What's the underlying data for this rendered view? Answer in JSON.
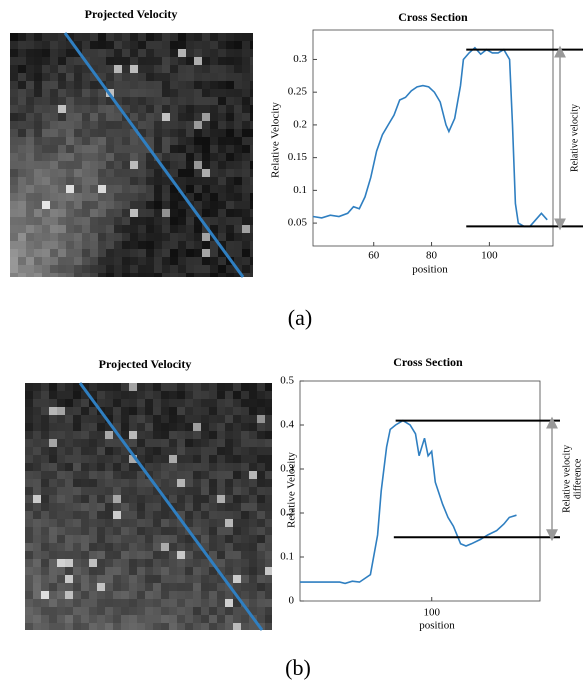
{
  "panels": [
    {
      "image_title": "Projected Velocity",
      "caption": "(a)"
    },
    {
      "image_title": "Projected Velocity",
      "caption": "(b)"
    }
  ],
  "chart_data": [
    {
      "type": "line",
      "title": "Cross Section",
      "x_label": "position",
      "y_label": "Relative Velocity",
      "annotation_lines": [
        "Relative velocity"
      ],
      "color": "#2f7fc1",
      "xlim": [
        39,
        122
      ],
      "xticks": [
        60,
        80,
        100
      ],
      "ylim": [
        0.015,
        0.345
      ],
      "yticks": [
        0.05,
        0.1,
        0.15,
        0.2,
        0.25,
        0.3
      ],
      "x": [
        39,
        42,
        45,
        48,
        51,
        53,
        55,
        57,
        59,
        61,
        63,
        65,
        67,
        69,
        71,
        73,
        75,
        77,
        79,
        81,
        83,
        85,
        86,
        88,
        90,
        91,
        93,
        95,
        97,
        99,
        101,
        103,
        105,
        107,
        108,
        109,
        110,
        112,
        114,
        116,
        118,
        120
      ],
      "values": [
        0.06,
        0.058,
        0.062,
        0.06,
        0.065,
        0.075,
        0.072,
        0.09,
        0.12,
        0.16,
        0.185,
        0.2,
        0.215,
        0.238,
        0.242,
        0.252,
        0.258,
        0.26,
        0.258,
        0.25,
        0.235,
        0.2,
        0.19,
        0.21,
        0.26,
        0.3,
        0.31,
        0.318,
        0.308,
        0.315,
        0.31,
        0.31,
        0.315,
        0.3,
        0.2,
        0.08,
        0.05,
        0.045,
        0.045,
        0.055,
        0.065,
        0.055
      ],
      "hlines": [
        {
          "value": 0.315,
          "xstart": 92
        },
        {
          "value": 0.045,
          "xstart": 92
        }
      ]
    },
    {
      "type": "line",
      "title": "Cross Section",
      "x_label": "position",
      "y_label": "Relative Velocity",
      "annotation_lines": [
        "Relative velocity",
        "difference"
      ],
      "color": "#2f7fc1",
      "xlim": [
        27,
        160
      ],
      "xticks": [
        100
      ],
      "ylim": [
        0,
        0.5
      ],
      "yticks": [
        0,
        0.1,
        0.2,
        0.3,
        0.4,
        0.5
      ],
      "x": [
        27,
        49,
        52,
        56,
        60,
        66,
        70,
        72,
        75,
        77,
        80,
        84,
        88,
        91,
        93,
        96,
        98,
        100,
        102,
        106,
        109,
        112,
        116,
        119,
        122,
        127,
        131,
        136,
        140,
        143,
        147
      ],
      "values": [
        0.043,
        0.043,
        0.04,
        0.045,
        0.043,
        0.06,
        0.15,
        0.25,
        0.35,
        0.39,
        0.4,
        0.41,
        0.4,
        0.38,
        0.33,
        0.37,
        0.33,
        0.34,
        0.27,
        0.22,
        0.19,
        0.17,
        0.13,
        0.125,
        0.13,
        0.14,
        0.15,
        0.16,
        0.175,
        0.19,
        0.195
      ],
      "hlines": [
        {
          "value": 0.41,
          "xstart": 80
        },
        {
          "value": 0.145,
          "xstart": 79
        }
      ]
    }
  ]
}
